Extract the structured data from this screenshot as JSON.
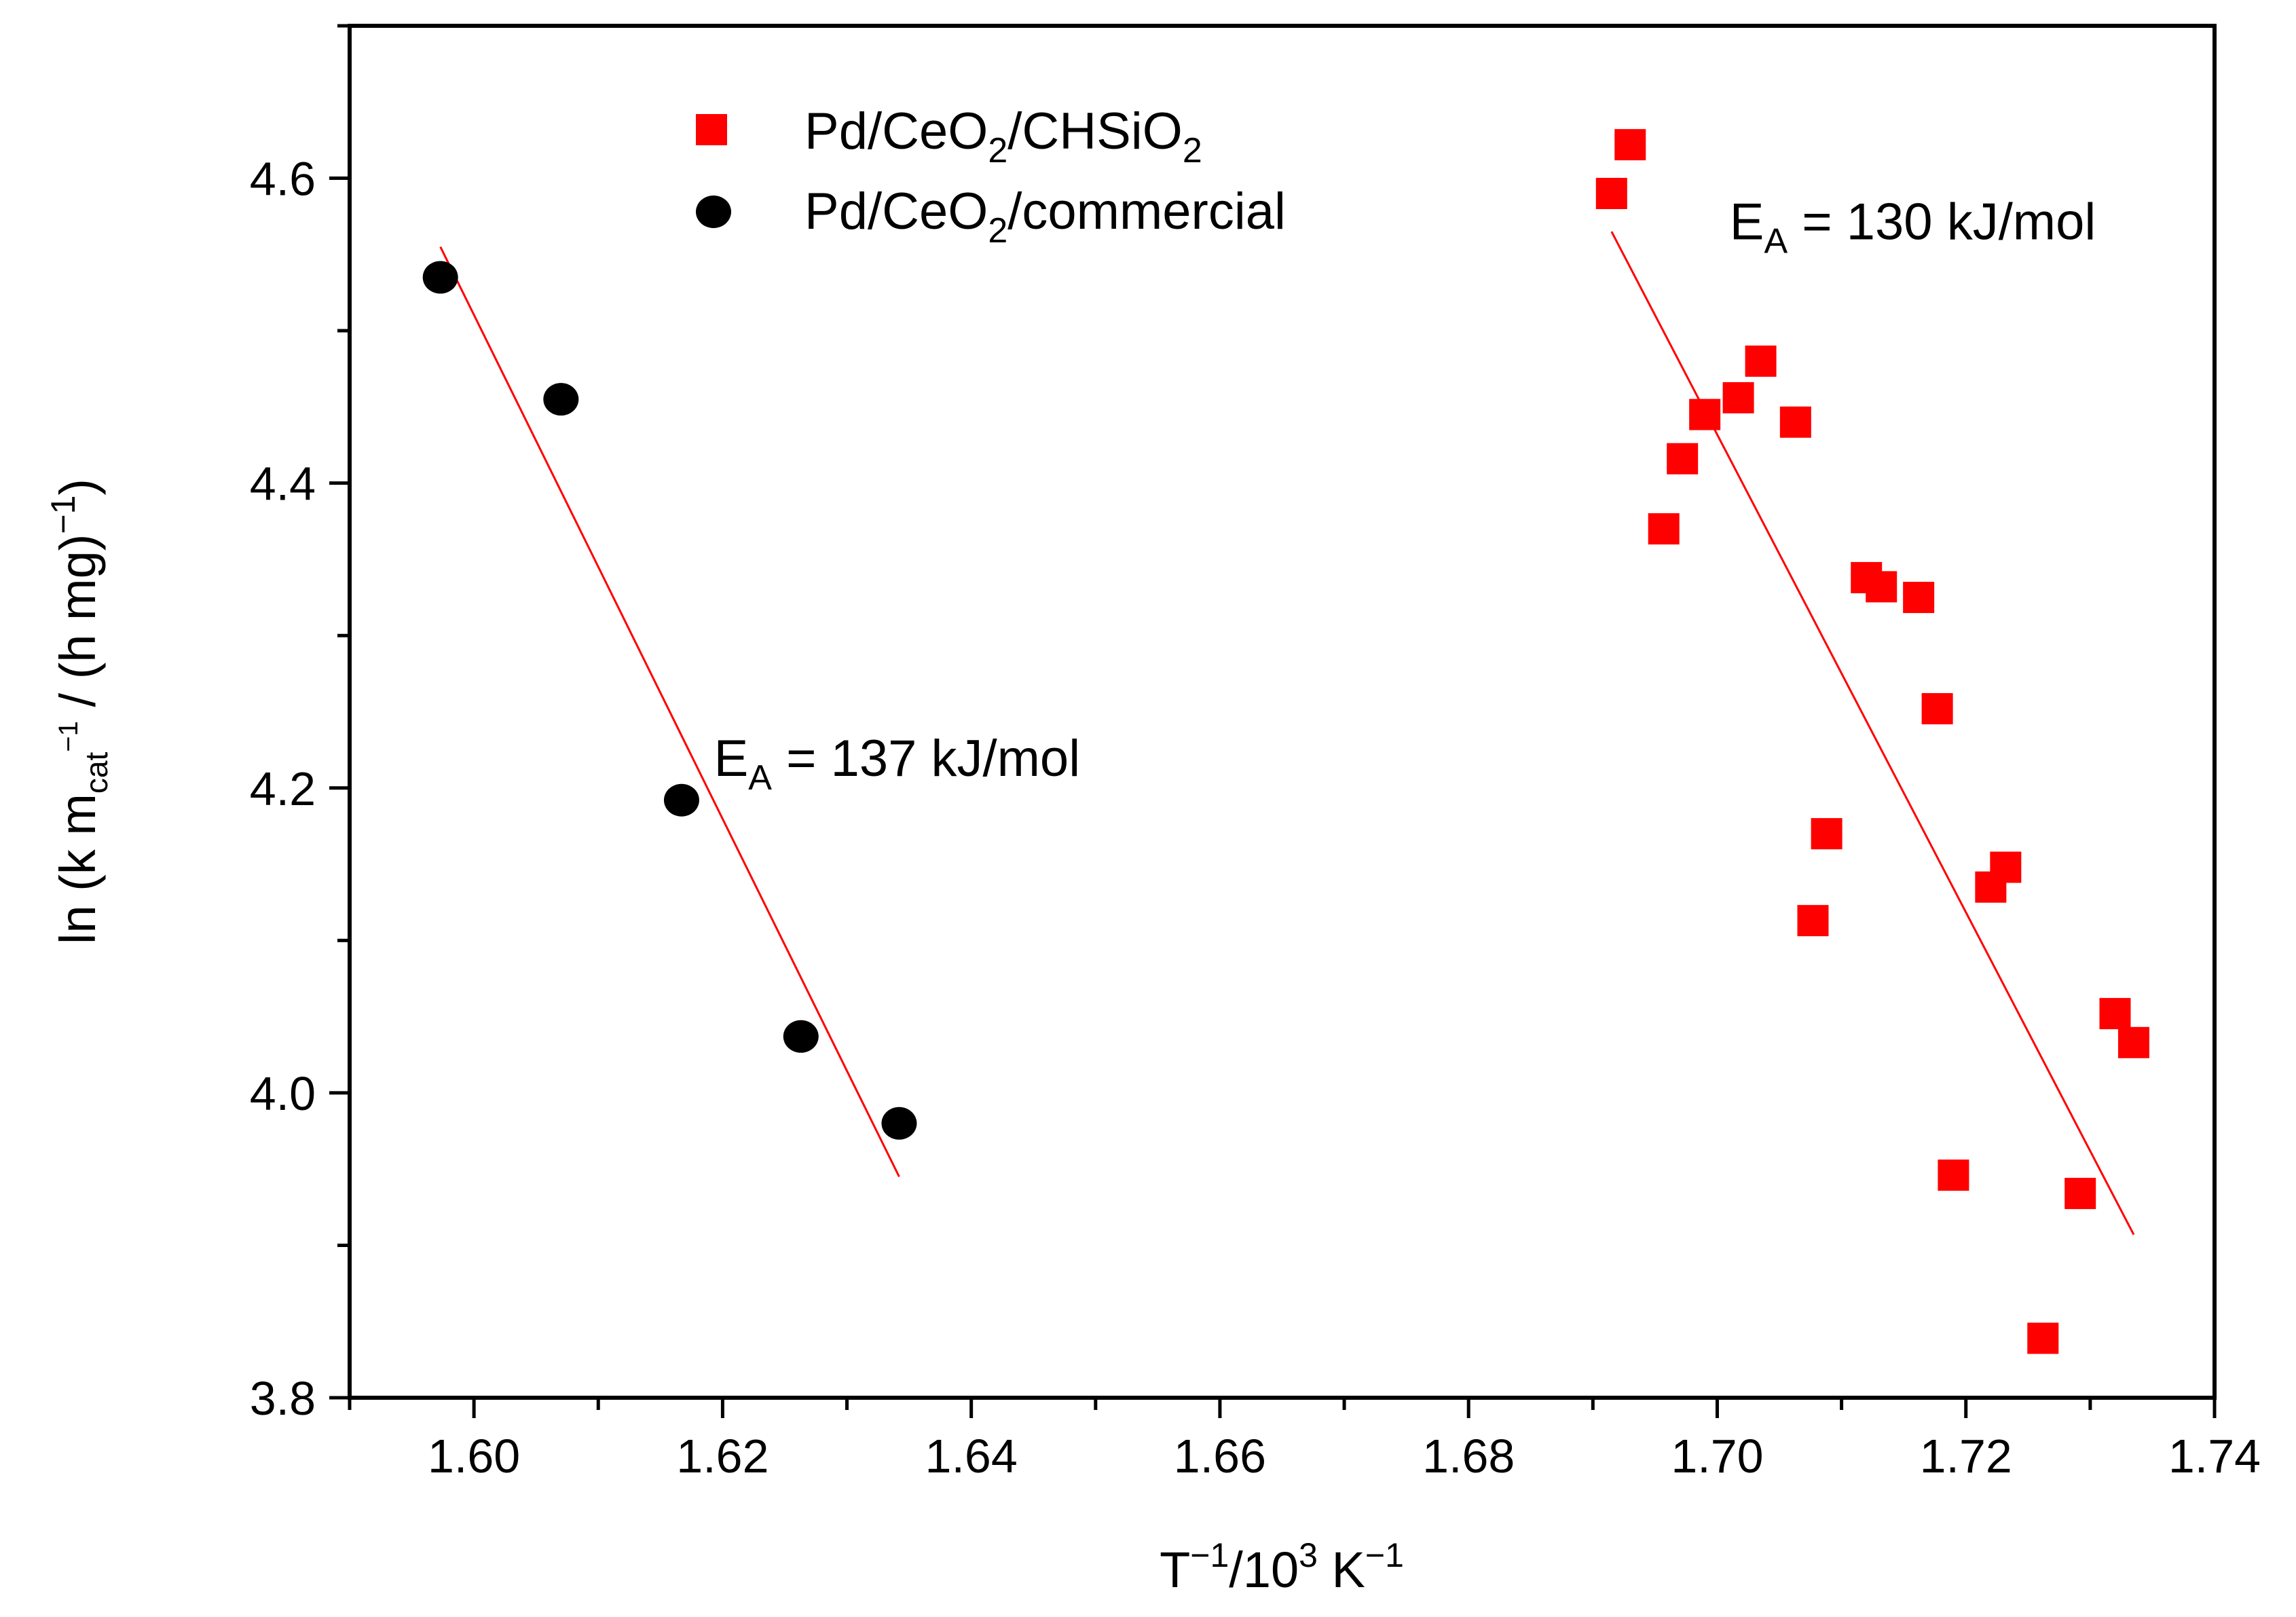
{
  "chart_data": {
    "type": "scatter",
    "title": "",
    "xlabel": {
      "base": "T",
      "sup1": "−1",
      "mid": "/10",
      "sup2": "3",
      "unit": " K",
      "sup3": "−1"
    },
    "ylabel": {
      "part1": "ln (k m",
      "sub": "cat",
      "sup_cat": "−1",
      "part2": " / (h mg)",
      "sup_end": "−1",
      "part3": ")"
    },
    "xlim": [
      1.59,
      1.74
    ],
    "ylim": [
      3.8,
      4.7
    ],
    "xticks": [
      1.6,
      1.62,
      1.64,
      1.66,
      1.68,
      1.7,
      1.72,
      1.74
    ],
    "xtick_labels": [
      "1.60",
      "1.62",
      "1.64",
      "1.66",
      "1.68",
      "1.70",
      "1.72",
      "1.74"
    ],
    "xminor_step": 0.01,
    "yticks": [
      3.8,
      4.0,
      4.2,
      4.4,
      4.6
    ],
    "ytick_labels": [
      "3.8",
      "4.0",
      "4.2",
      "4.4",
      "4.6"
    ],
    "yminor_step": 0.1,
    "grid": false,
    "legend_position": "top-left",
    "series": [
      {
        "name": "Pd/CeO2/CHSiO2",
        "legend": {
          "pre": "Pd/CeO",
          "sub1": "2",
          "mid": "/CHSiO",
          "sub2": "2",
          "post": ""
        },
        "color": "#ff0000",
        "marker": "square",
        "points": [
          [
            1.6915,
            4.59
          ],
          [
            1.693,
            4.622
          ],
          [
            1.6957,
            4.37
          ],
          [
            1.6972,
            4.416
          ],
          [
            1.699,
            4.445
          ],
          [
            1.7017,
            4.456
          ],
          [
            1.7035,
            4.48
          ],
          [
            1.7063,
            4.44
          ],
          [
            1.7077,
            4.113
          ],
          [
            1.7088,
            4.17
          ],
          [
            1.712,
            4.338
          ],
          [
            1.7132,
            4.332
          ],
          [
            1.7162,
            4.325
          ],
          [
            1.7177,
            4.252
          ],
          [
            1.719,
            3.946
          ],
          [
            1.722,
            4.135
          ],
          [
            1.7232,
            4.148
          ],
          [
            1.7262,
            3.839
          ],
          [
            1.7292,
            3.934
          ],
          [
            1.732,
            4.052
          ],
          [
            1.7335,
            4.033
          ]
        ],
        "fit": {
          "x": [
            1.6915,
            1.7335
          ],
          "y": [
            4.565,
            3.907
          ]
        }
      },
      {
        "name": "Pd/CeO2/commercial",
        "legend": {
          "pre": "Pd/CeO",
          "sub1": "2",
          "mid": "/commercial",
          "sub2": "",
          "post": ""
        },
        "color": "#000000",
        "marker": "circle",
        "points": [
          [
            1.5973,
            4.535
          ],
          [
            1.607,
            4.455
          ],
          [
            1.6167,
            4.192
          ],
          [
            1.6263,
            4.037
          ],
          [
            1.6342,
            3.98
          ]
        ],
        "fit": {
          "x": [
            1.5973,
            1.6342
          ],
          "y": [
            4.555,
            3.945
          ]
        }
      }
    ],
    "fit_color": "#ff0000",
    "annotations": [
      {
        "id": "ea-chsio2",
        "pre": "E",
        "sub": "A",
        "post": " = 130 kJ/mol",
        "x": 1.701,
        "y": 4.56
      },
      {
        "id": "ea-commercial",
        "pre": "E",
        "sub": "A",
        "post": " = 137 kJ/mol",
        "x": 1.6193,
        "y": 4.208
      }
    ]
  }
}
